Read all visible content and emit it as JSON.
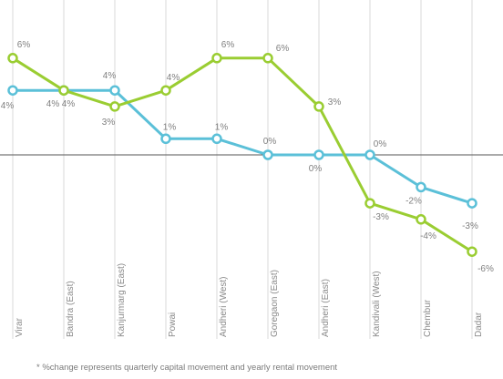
{
  "chart_data": {
    "type": "line",
    "categories": [
      "Virar",
      "Bandra (East)",
      "Kanjurmarg (East)",
      "Powai",
      "Andheri (West)",
      "Goregaon (East)",
      "Andheri (East)",
      "Kandivali (West)",
      "Chembur",
      "Dadar"
    ],
    "series": [
      {
        "color": "#5bc0d8",
        "values": [
          4,
          4,
          4,
          1,
          1,
          0,
          0,
          0,
          -2,
          -3
        ],
        "labels": [
          "4%",
          "4%",
          "4%",
          "1%",
          "1%",
          "0%",
          "0%",
          "0%",
          "-2%",
          "-3%"
        ]
      },
      {
        "color": "#9acd32",
        "values": [
          6,
          4,
          3,
          4,
          6,
          6,
          3,
          -3,
          -4,
          -6
        ],
        "labels": [
          "6%",
          "4%",
          "3%",
          "4%",
          "6%",
          "6%",
          "3%",
          "-3%",
          "-4%",
          "-6%"
        ]
      }
    ],
    "ylim": [
      -6,
      6
    ],
    "grid": "vertical",
    "legend": "none"
  },
  "footnote": "* %change represents quarterly capital movement and yearly rental movement"
}
